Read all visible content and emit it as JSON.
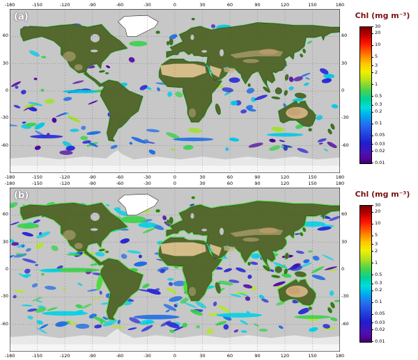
{
  "figure": {
    "panels": [
      {
        "label": "(a)"
      },
      {
        "label": "(b)"
      }
    ],
    "colorbar": {
      "title": "Chl (mg m⁻³)",
      "tick_labels": [
        "30",
        "20",
        "10",
        "5",
        "3",
        "2",
        "1",
        "0.5",
        "0.3",
        "0.2",
        "0.1",
        "0.05",
        "0.03",
        "0.02",
        "0.01"
      ],
      "tick_values": [
        30,
        20,
        10,
        5,
        3,
        2,
        1,
        0.5,
        0.3,
        0.2,
        0.1,
        0.05,
        0.03,
        0.02,
        0.01
      ],
      "scale": "log",
      "min": 0.01,
      "max": 30
    },
    "axes": {
      "lon_ticks": [
        -180,
        -150,
        -120,
        -90,
        -60,
        -30,
        0,
        30,
        60,
        90,
        120,
        150,
        180
      ],
      "lat_ticks": [
        60,
        30,
        0,
        -30,
        -60
      ]
    },
    "map": {
      "projection": "equirectangular",
      "ocean_nodata_color": "#c7c7c7",
      "land_color": "#55682e",
      "ice_color": "#ffffff"
    }
  }
}
